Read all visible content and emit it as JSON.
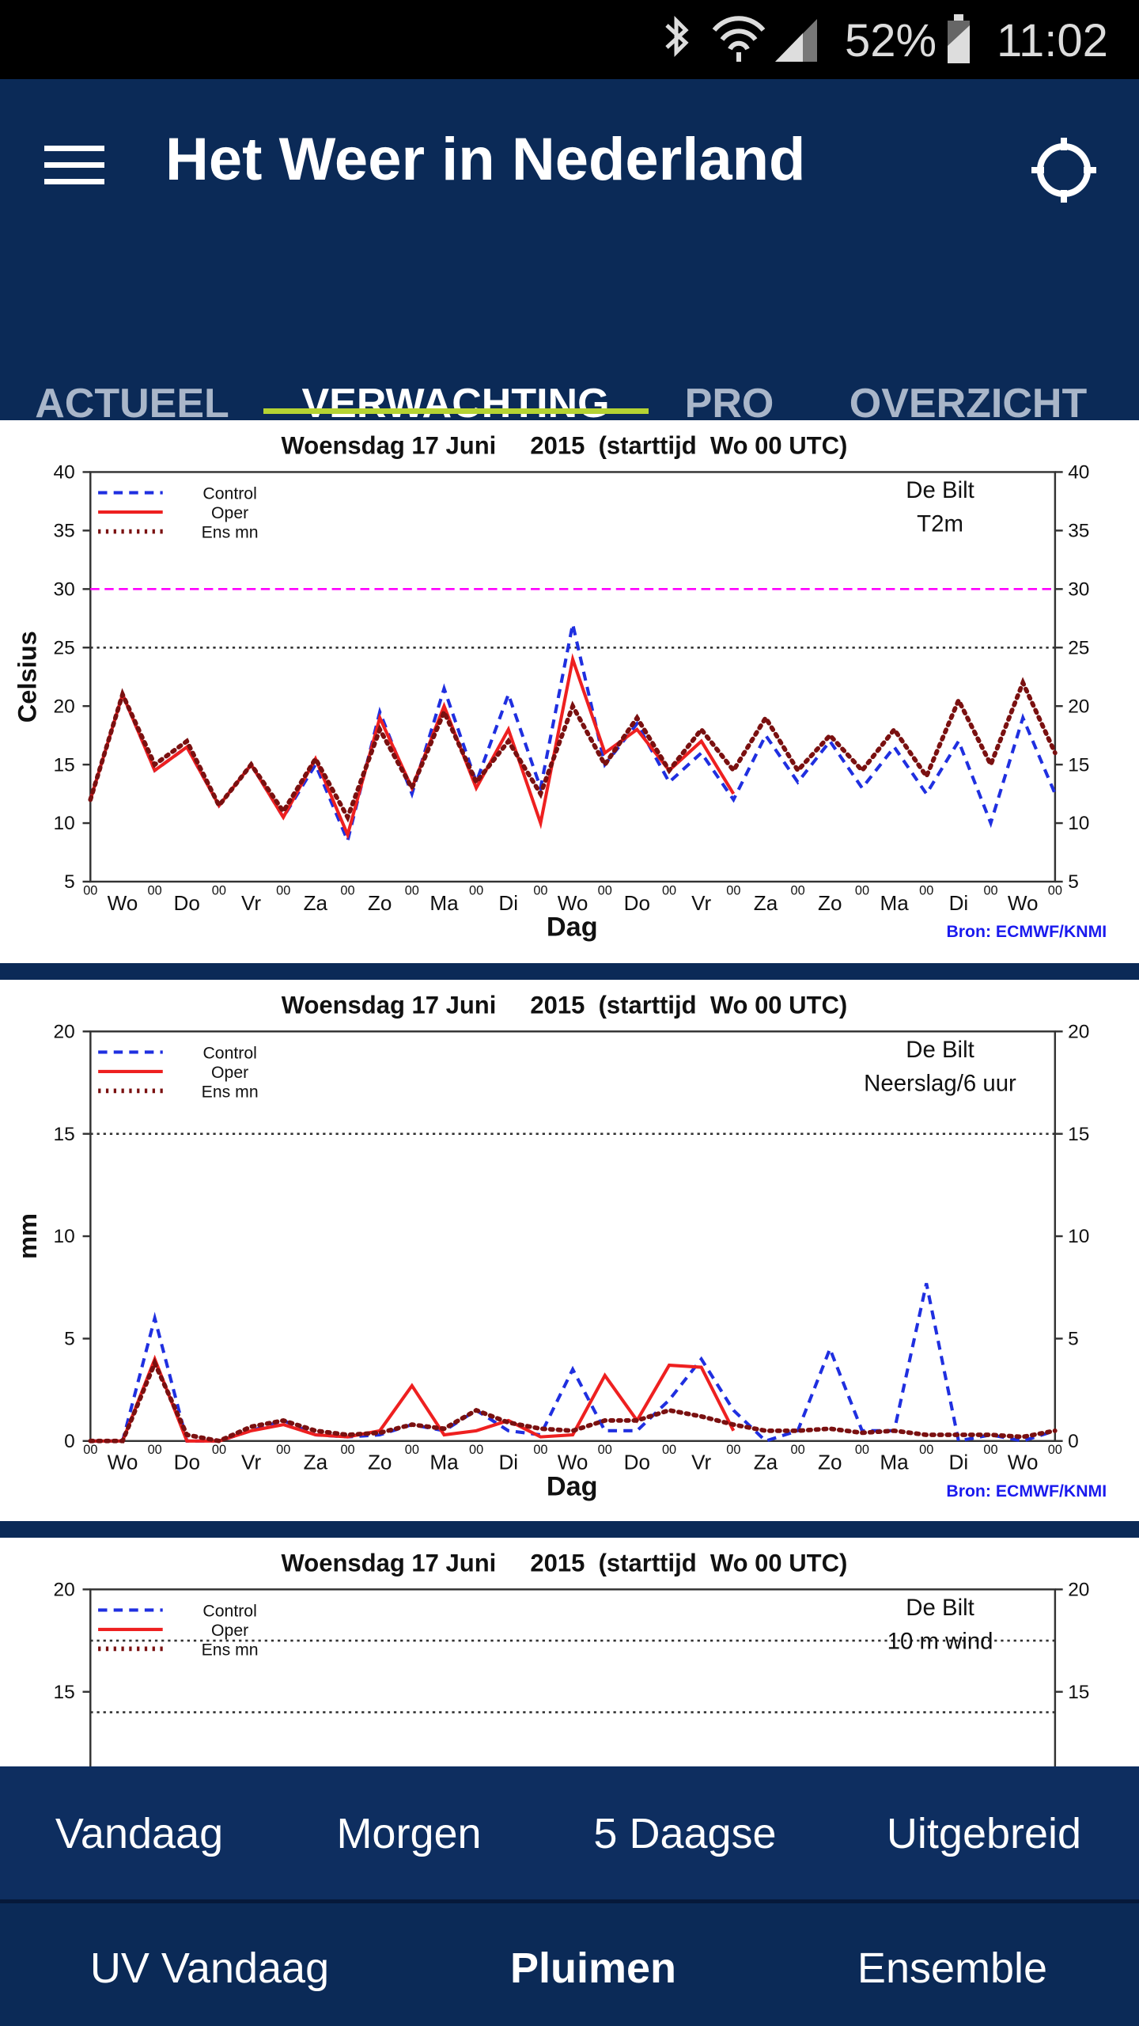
{
  "status_bar": {
    "battery": "52%",
    "time": "11:02"
  },
  "app_bar": {
    "title": "Het Weer in Nederland"
  },
  "tabs": [
    "ACTUEEL",
    "VERWACHTING",
    "PRO",
    "OVERZICHT"
  ],
  "chart_data": [
    {
      "type": "line",
      "title": "Woensdag 17 Juni     2015  (starttijd  Wo 00 UTC)",
      "location": "De Bilt",
      "variable": "T2m",
      "y_label": "Celsius",
      "x_label": "Dag",
      "source": "Bron: ECMWF/KNMI",
      "hour_tick_label": "00",
      "categories": [
        "Wo",
        "Do",
        "Vr",
        "Za",
        "Zo",
        "Ma",
        "Di",
        "Wo",
        "Do",
        "Vr",
        "Za",
        "Zo",
        "Ma",
        "Di",
        "Wo"
      ],
      "xlim": [
        0,
        15
      ],
      "ylim": [
        5,
        40
      ],
      "yticks": [
        5,
        10,
        15,
        20,
        25,
        30,
        35,
        40
      ],
      "reference_lines": [
        {
          "value": 30,
          "color": "#ff00ff",
          "style": "dashed"
        },
        {
          "value": 25,
          "color": "#333333",
          "style": "dotted"
        }
      ],
      "x": [
        0,
        0.5,
        1,
        1.5,
        2,
        2.5,
        3,
        3.5,
        4,
        4.5,
        5,
        5.5,
        6,
        6.5,
        7,
        7.5,
        8,
        8.5,
        9,
        9.5,
        10,
        10.5,
        11,
        11.5,
        12,
        12.5,
        13,
        13.5,
        14,
        14.5,
        15
      ],
      "series": [
        {
          "name": "Control",
          "color": "#1f2fe0",
          "style": "dashed",
          "values": [
            12,
            21,
            14.5,
            16.5,
            11.5,
            15,
            10.5,
            15,
            8.5,
            19.5,
            12.5,
            21.5,
            13.5,
            21,
            13,
            27,
            15,
            18.5,
            13.5,
            16,
            12,
            17.5,
            13.5,
            17,
            13,
            16.5,
            12.5,
            17,
            10,
            19,
            12.5
          ]
        },
        {
          "name": "Oper",
          "color": "#ee2020",
          "style": "solid",
          "values": [
            12,
            21,
            14.5,
            16.5,
            11.5,
            15,
            10.5,
            15.5,
            9,
            19,
            13,
            20,
            13,
            18,
            10,
            24,
            16,
            18,
            14.5,
            17,
            12.5,
            null,
            null,
            null,
            null,
            null,
            null,
            null,
            null,
            null,
            null
          ]
        },
        {
          "name": "Ens mn",
          "color": "#7a1010",
          "style": "dotted",
          "values": [
            12,
            21,
            15,
            17,
            11.5,
            15,
            11,
            15.5,
            10.5,
            18,
            13,
            19.5,
            13.5,
            17,
            12.5,
            20,
            15,
            19,
            14.5,
            18,
            14.5,
            19,
            14.5,
            17.5,
            14.5,
            18,
            14,
            20.5,
            15,
            22,
            16
          ]
        }
      ]
    },
    {
      "type": "line",
      "title": "Woensdag 17 Juni     2015  (starttijd  Wo 00 UTC)",
      "location": "De Bilt",
      "variable": "Neerslag/6 uur",
      "y_label": "mm",
      "x_label": "Dag",
      "source": "Bron: ECMWF/KNMI",
      "hour_tick_label": "00",
      "categories": [
        "Wo",
        "Do",
        "Vr",
        "Za",
        "Zo",
        "Ma",
        "Di",
        "Wo",
        "Do",
        "Vr",
        "Za",
        "Zo",
        "Ma",
        "Di",
        "Wo"
      ],
      "xlim": [
        0,
        15
      ],
      "ylim": [
        0,
        20
      ],
      "yticks": [
        0,
        5,
        10,
        15,
        20
      ],
      "reference_lines": [
        {
          "value": 15,
          "color": "#333333",
          "style": "dotted"
        }
      ],
      "x": [
        0,
        0.5,
        1,
        1.5,
        2,
        2.5,
        3,
        3.5,
        4,
        4.5,
        5,
        5.5,
        6,
        6.5,
        7,
        7.5,
        8,
        8.5,
        9,
        9.5,
        10,
        10.5,
        11,
        11.5,
        12,
        12.5,
        13,
        13.5,
        14,
        14.5,
        15
      ],
      "series": [
        {
          "name": "Control",
          "color": "#1f2fe0",
          "style": "dashed",
          "values": [
            0,
            0,
            6,
            0,
            0,
            0.5,
            1,
            0.3,
            0.2,
            0.3,
            0.8,
            0.5,
            1.5,
            0.5,
            0.3,
            3.5,
            0.5,
            0.5,
            2,
            4,
            1.5,
            0,
            0.5,
            4.5,
            0.5,
            0.5,
            7.7,
            0,
            0.3,
            0,
            0.5
          ]
        },
        {
          "name": "Oper",
          "color": "#ee2020",
          "style": "solid",
          "values": [
            0,
            0,
            4,
            0,
            0,
            0.5,
            0.8,
            0.3,
            0.2,
            0.5,
            2.7,
            0.3,
            0.5,
            1,
            0.2,
            0.3,
            3.2,
            1,
            3.7,
            3.6,
            0.5,
            null,
            null,
            null,
            null,
            null,
            null,
            null,
            null,
            null,
            null
          ]
        },
        {
          "name": "Ens mn",
          "color": "#7a1010",
          "style": "dotted",
          "values": [
            0,
            0,
            3.8,
            0.3,
            0,
            0.7,
            1,
            0.5,
            0.3,
            0.4,
            0.8,
            0.6,
            1.5,
            0.9,
            0.6,
            0.5,
            1,
            1,
            1.5,
            1.2,
            0.8,
            0.5,
            0.5,
            0.6,
            0.4,
            0.5,
            0.3,
            0.3,
            0.3,
            0.2,
            0.5
          ]
        }
      ]
    },
    {
      "type": "line",
      "title": "Woensdag 17 Juni     2015  (starttijd  Wo 00 UTC)",
      "location": "De Bilt",
      "variable": "10 m wind",
      "ylim": [
        0,
        20
      ],
      "yticks": [
        15,
        20
      ],
      "reference_lines": [
        {
          "value": 17.5,
          "color": "#333333",
          "style": "dotted"
        },
        {
          "value": 14,
          "color": "#333333",
          "style": "dotted"
        }
      ],
      "series": [
        {
          "name": "Control",
          "color": "#1f2fe0",
          "style": "dashed"
        },
        {
          "name": "Oper",
          "color": "#ee2020",
          "style": "solid"
        },
        {
          "name": "Ens mn",
          "color": "#7a1010",
          "style": "dotted"
        }
      ]
    }
  ],
  "bottom_nav": {
    "row1": [
      "Vandaag",
      "Morgen",
      "5 Daagse",
      "Uitgebreid"
    ],
    "row2": [
      "UV Vandaag",
      "Pluimen",
      "Ensemble"
    ]
  }
}
